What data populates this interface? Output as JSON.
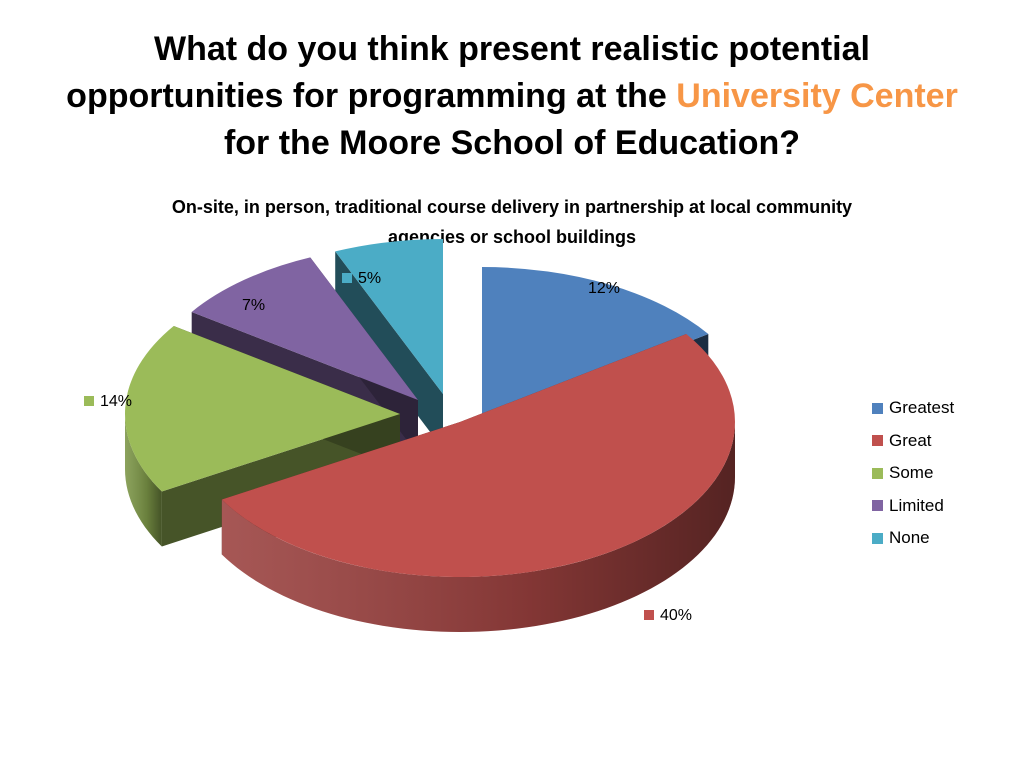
{
  "slide": {
    "title_part1": "What do you think present realistic potential opportunities for programming at the ",
    "title_accent": "University Center",
    "title_part2": " for the Moore School of Education?",
    "accent_color": "#f79646"
  },
  "chart_data": {
    "type": "pie",
    "variant": "3d-exploded",
    "title": "On-site, in person, traditional course delivery in partnership at local community agencies or school buildings",
    "categories": [
      "Greatest",
      "Great",
      "Some",
      "Limited",
      "None"
    ],
    "values": [
      12,
      40,
      14,
      7,
      5
    ],
    "data_labels": [
      "12%",
      "40%",
      "14%",
      "7%",
      "5%"
    ],
    "colors": [
      "#4f81bd",
      "#c0504d",
      "#9bbb59",
      "#8064a2",
      "#4bacc6"
    ],
    "legend_position": "right"
  }
}
